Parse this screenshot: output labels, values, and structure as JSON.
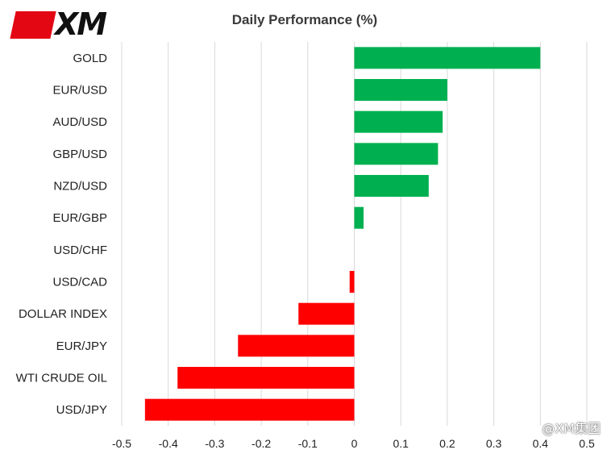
{
  "logo": {
    "text": "XM",
    "badge_color": "#e30613"
  },
  "watermark": {
    "text": "@XM集团"
  },
  "colors": {
    "positive": "#00b050",
    "negative": "#ff0000",
    "grid": "#d9d9d9"
  },
  "chart_data": {
    "type": "bar",
    "orientation": "horizontal",
    "title": "Daily Performance (%)",
    "xlabel": "",
    "ylabel": "",
    "xlim": [
      -0.5,
      0.5
    ],
    "xticks": [
      -0.5,
      -0.4,
      -0.3,
      -0.2,
      -0.1,
      0,
      0.1,
      0.2,
      0.3,
      0.4,
      0.5
    ],
    "grid": true,
    "legend": "none",
    "categories": [
      "GOLD",
      "EUR/USD",
      "AUD/USD",
      "GBP/USD",
      "NZD/USD",
      "EUR/GBP",
      "USD/CHF",
      "USD/CAD",
      "DOLLAR INDEX",
      "EUR/JPY",
      "WTI CRUDE OIL",
      "USD/JPY"
    ],
    "values": [
      0.4,
      0.2,
      0.19,
      0.18,
      0.16,
      0.02,
      0.0,
      -0.01,
      -0.12,
      -0.25,
      -0.38,
      -0.45
    ]
  }
}
